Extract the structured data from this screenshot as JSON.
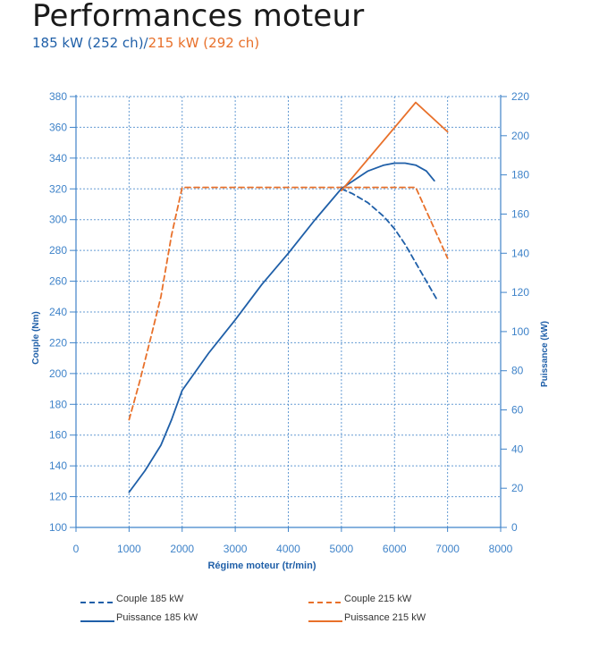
{
  "header": {
    "title": "Performances moteur",
    "subtitle_a": "185 kW (252 ch)",
    "subtitle_sep": "/",
    "subtitle_b": "215 kW (292 ch)"
  },
  "colors": {
    "blue": "#1f5fa8",
    "orange": "#e8702a",
    "axis": "#3f83c9",
    "grid": "#3f83c9",
    "title": "#1a1a1a"
  },
  "chart_data": {
    "type": "line",
    "xlabel": "Régime moteur (tr/min)",
    "ylabel_left": "Couple (Nm)",
    "ylabel_right": "Puissance (kW)",
    "xlim": [
      0,
      8000
    ],
    "ylim_left": [
      100,
      380
    ],
    "ylim_right": [
      0,
      220
    ],
    "x_ticks": [
      "0",
      "1000",
      "2000",
      "3000",
      "4000",
      "5000",
      "6000",
      "7000",
      "8000"
    ],
    "y_left_ticks": [
      "100",
      "120",
      "140",
      "160",
      "180",
      "200",
      "220",
      "240",
      "260",
      "280",
      "300",
      "320",
      "340",
      "360",
      "380"
    ],
    "y_right_ticks": [
      "0",
      "20",
      "40",
      "60",
      "80",
      "100",
      "120",
      "140",
      "160",
      "180",
      "200",
      "220"
    ],
    "grid": true,
    "legend_position": "bottom",
    "series": [
      {
        "name": "Couple 185 kW",
        "axis": "left",
        "color": "#1f5fa8",
        "dash": true,
        "x": [
          5000,
          5200,
          5500,
          5800,
          6000,
          6200,
          6500,
          6800
        ],
        "y": [
          320,
          317,
          311,
          302,
          294,
          284,
          266,
          248
        ]
      },
      {
        "name": "Couple 215 kW",
        "axis": "left",
        "color": "#e8702a",
        "dash": true,
        "x": [
          1000,
          1200,
          1400,
          1600,
          1800,
          2000,
          3000,
          4000,
          5000,
          6000,
          6400,
          7000
        ],
        "y": [
          170,
          195,
          222,
          250,
          290,
          321,
          321,
          321,
          321,
          321,
          321,
          275
        ]
      },
      {
        "name": "Puissance 185 kW",
        "axis": "right",
        "color": "#1f5fa8",
        "dash": false,
        "x": [
          1000,
          1300,
          1600,
          1800,
          2000,
          2500,
          3000,
          3500,
          4000,
          4500,
          5000,
          5500,
          5800,
          6000,
          6200,
          6400,
          6600,
          6750
        ],
        "y": [
          18,
          29,
          42,
          55,
          70,
          89,
          106,
          124,
          140,
          157,
          173,
          182,
          185,
          186,
          186,
          185,
          182,
          177
        ]
      },
      {
        "name": "Puissance 215 kW",
        "axis": "right",
        "color": "#e8702a",
        "dash": false,
        "x": [
          5000,
          6400,
          7000
        ],
        "y": [
          172,
          217,
          202
        ]
      }
    ]
  }
}
